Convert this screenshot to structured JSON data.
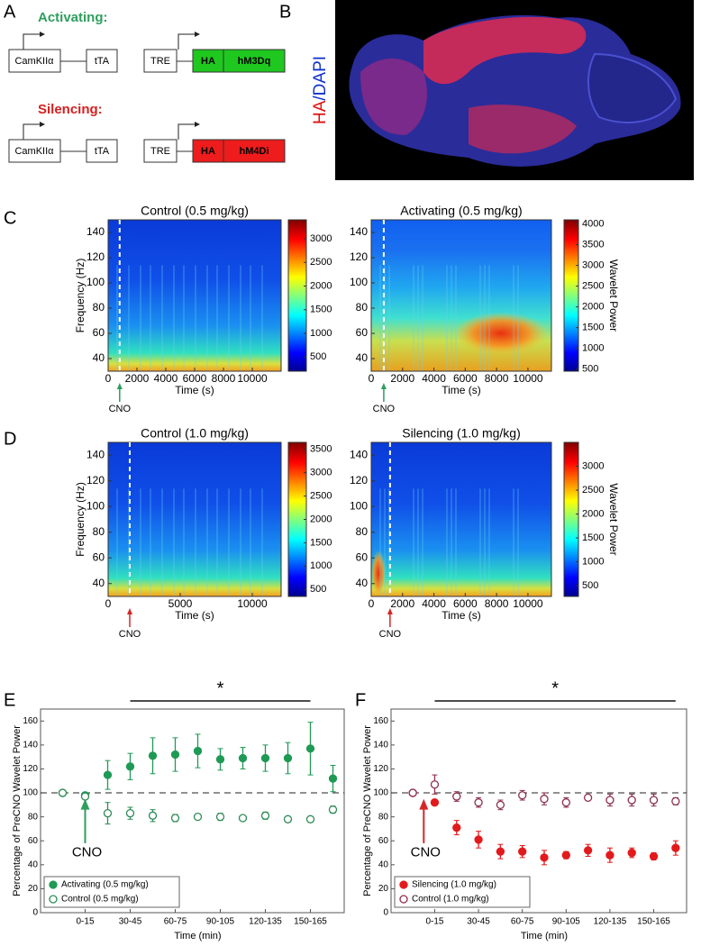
{
  "panel_labels": [
    "A",
    "B",
    "C",
    "D",
    "E",
    "F"
  ],
  "constructs": {
    "activating_title": "Activating:",
    "silencing_title": "Silencing:",
    "promoter": "CamKIIα",
    "transactivator": "tTA",
    "response": "TRE",
    "tag": "HA",
    "activating_receptor": "hM3Dq",
    "silencing_receptor": "hM4Di"
  },
  "image_label": {
    "stain_1": "HA",
    "stain_2": "/DAPI"
  },
  "chart_data": [
    {
      "type": "spectrogram",
      "title": "Control (0.5 mg/kg)",
      "xlabel": "Time (s)",
      "ylabel": "Frequency (Hz)",
      "xlim": [
        0,
        12000
      ],
      "xticks": [
        0,
        2000,
        4000,
        6000,
        8000,
        10000
      ],
      "ylim": [
        30,
        150
      ],
      "yticks": [
        40,
        60,
        80,
        100,
        120,
        140
      ],
      "clim": [
        200,
        3400
      ],
      "cticks": [
        500,
        1000,
        1500,
        2000,
        2500,
        3000
      ],
      "annotation": {
        "text": "CNO",
        "x": 800,
        "color": "#2e9e5e"
      }
    },
    {
      "type": "spectrogram",
      "title": "Activating (0.5 mg/kg)",
      "xlabel": "Time (s)",
      "clabel": "Wavelet Power",
      "xlim": [
        0,
        11500
      ],
      "xticks": [
        0,
        2000,
        4000,
        6000,
        8000,
        10000
      ],
      "ylim": [
        30,
        150
      ],
      "yticks": [
        40,
        60,
        80,
        100,
        120,
        140
      ],
      "clim": [
        450,
        4100
      ],
      "cticks": [
        500,
        1000,
        1500,
        2000,
        2500,
        3000,
        3500,
        4000
      ],
      "annotation": {
        "text": "CNO",
        "x": 800,
        "color": "#2e9e5e"
      }
    },
    {
      "type": "spectrogram",
      "title": "Control (1.0 mg/kg)",
      "xlabel": "Time (s)",
      "ylabel": "Frequency (Hz)",
      "xlim": [
        0,
        12000
      ],
      "xticks": [
        0,
        5000,
        10000
      ],
      "ylim": [
        30,
        150
      ],
      "yticks": [
        40,
        60,
        80,
        100,
        120,
        140
      ],
      "clim": [
        350,
        3650
      ],
      "cticks": [
        500,
        1000,
        1500,
        2000,
        2500,
        3000,
        3500
      ],
      "annotation": {
        "text": "CNO",
        "x": 1500,
        "color": "#d62728"
      }
    },
    {
      "type": "spectrogram",
      "title": "Silencing (1.0 mg/kg)",
      "xlabel": "Time (s)",
      "clabel": "Wavelet Power",
      "xlim": [
        0,
        11500
      ],
      "xticks": [
        0,
        2000,
        4000,
        6000,
        8000,
        10000
      ],
      "ylim": [
        30,
        150
      ],
      "yticks": [
        40,
        60,
        80,
        100,
        120,
        140
      ],
      "clim": [
        275,
        3500
      ],
      "cticks": [
        500,
        1000,
        1500,
        2000,
        2500,
        3000
      ],
      "annotation": {
        "text": "CNO",
        "x": 1200,
        "color": "#d62728"
      }
    },
    {
      "type": "errorbar",
      "xlabel": "Time (min)",
      "ylabel": "Percentage of PreCNO Wavelet Power",
      "categories": [
        null,
        "0-15",
        null,
        "30-45",
        null,
        "60-75",
        null,
        "90-105",
        null,
        "120-135",
        null,
        "150-165",
        null
      ],
      "ylim": [
        0,
        170
      ],
      "yticks": [
        0,
        20,
        40,
        60,
        80,
        100,
        120,
        140,
        160
      ],
      "reference_line": 100,
      "significance_label": "*",
      "annotation": {
        "text": "CNO",
        "color": "#2e9e5e"
      },
      "legend": "lower left",
      "series": [
        {
          "name": "Activating (0.5 mg/kg)",
          "color": "#1f9a55",
          "marker": "filled",
          "values": [
            100,
            98,
            115,
            122,
            131,
            132,
            135,
            128,
            129,
            129,
            129,
            137,
            112
          ],
          "errors": [
            0,
            2,
            12,
            11,
            15,
            14,
            14,
            9,
            9,
            11,
            13,
            22,
            11
          ]
        },
        {
          "name": "Control (0.5 mg/kg)",
          "color": "#2e8b57",
          "marker": "open",
          "values": [
            100,
            97,
            83,
            83,
            81,
            79,
            80,
            80,
            79,
            81,
            78,
            78,
            86
          ],
          "errors": [
            0,
            2,
            9,
            5,
            5,
            3,
            2,
            3,
            2,
            3,
            2,
            2,
            3
          ]
        }
      ]
    },
    {
      "type": "errorbar",
      "xlabel": "Time (min)",
      "ylabel": "Percentage of PreCNO Wavelet Power",
      "categories": [
        null,
        "0-15",
        null,
        "30-45",
        null,
        "60-75",
        null,
        "90-105",
        null,
        "120-135",
        null,
        "150-165",
        null
      ],
      "ylim": [
        0,
        170
      ],
      "yticks": [
        0,
        20,
        40,
        60,
        80,
        100,
        120,
        140,
        160
      ],
      "reference_line": 100,
      "significance_label": "*",
      "annotation": {
        "text": "CNO",
        "color": "#d62728"
      },
      "legend": "lower left",
      "series": [
        {
          "name": "Silencing (1.0 mg/kg)",
          "color": "#e31a1c",
          "marker": "filled",
          "values": [
            100,
            92,
            71,
            61,
            51,
            51,
            46,
            48,
            52,
            48,
            50,
            47,
            54
          ],
          "errors": [
            0,
            2,
            6,
            7,
            6,
            5,
            6,
            3,
            5,
            6,
            4,
            3,
            6
          ]
        },
        {
          "name": "Control (1.0 mg/kg)",
          "color": "#8b2f4f",
          "marker": "open",
          "values": [
            100,
            107,
            97,
            92,
            90,
            98,
            95,
            92,
            96,
            94,
            94,
            94,
            93
          ],
          "errors": [
            0,
            8,
            4,
            4,
            4,
            4,
            5,
            4,
            2,
            5,
            5,
            5,
            3
          ]
        }
      ]
    }
  ]
}
